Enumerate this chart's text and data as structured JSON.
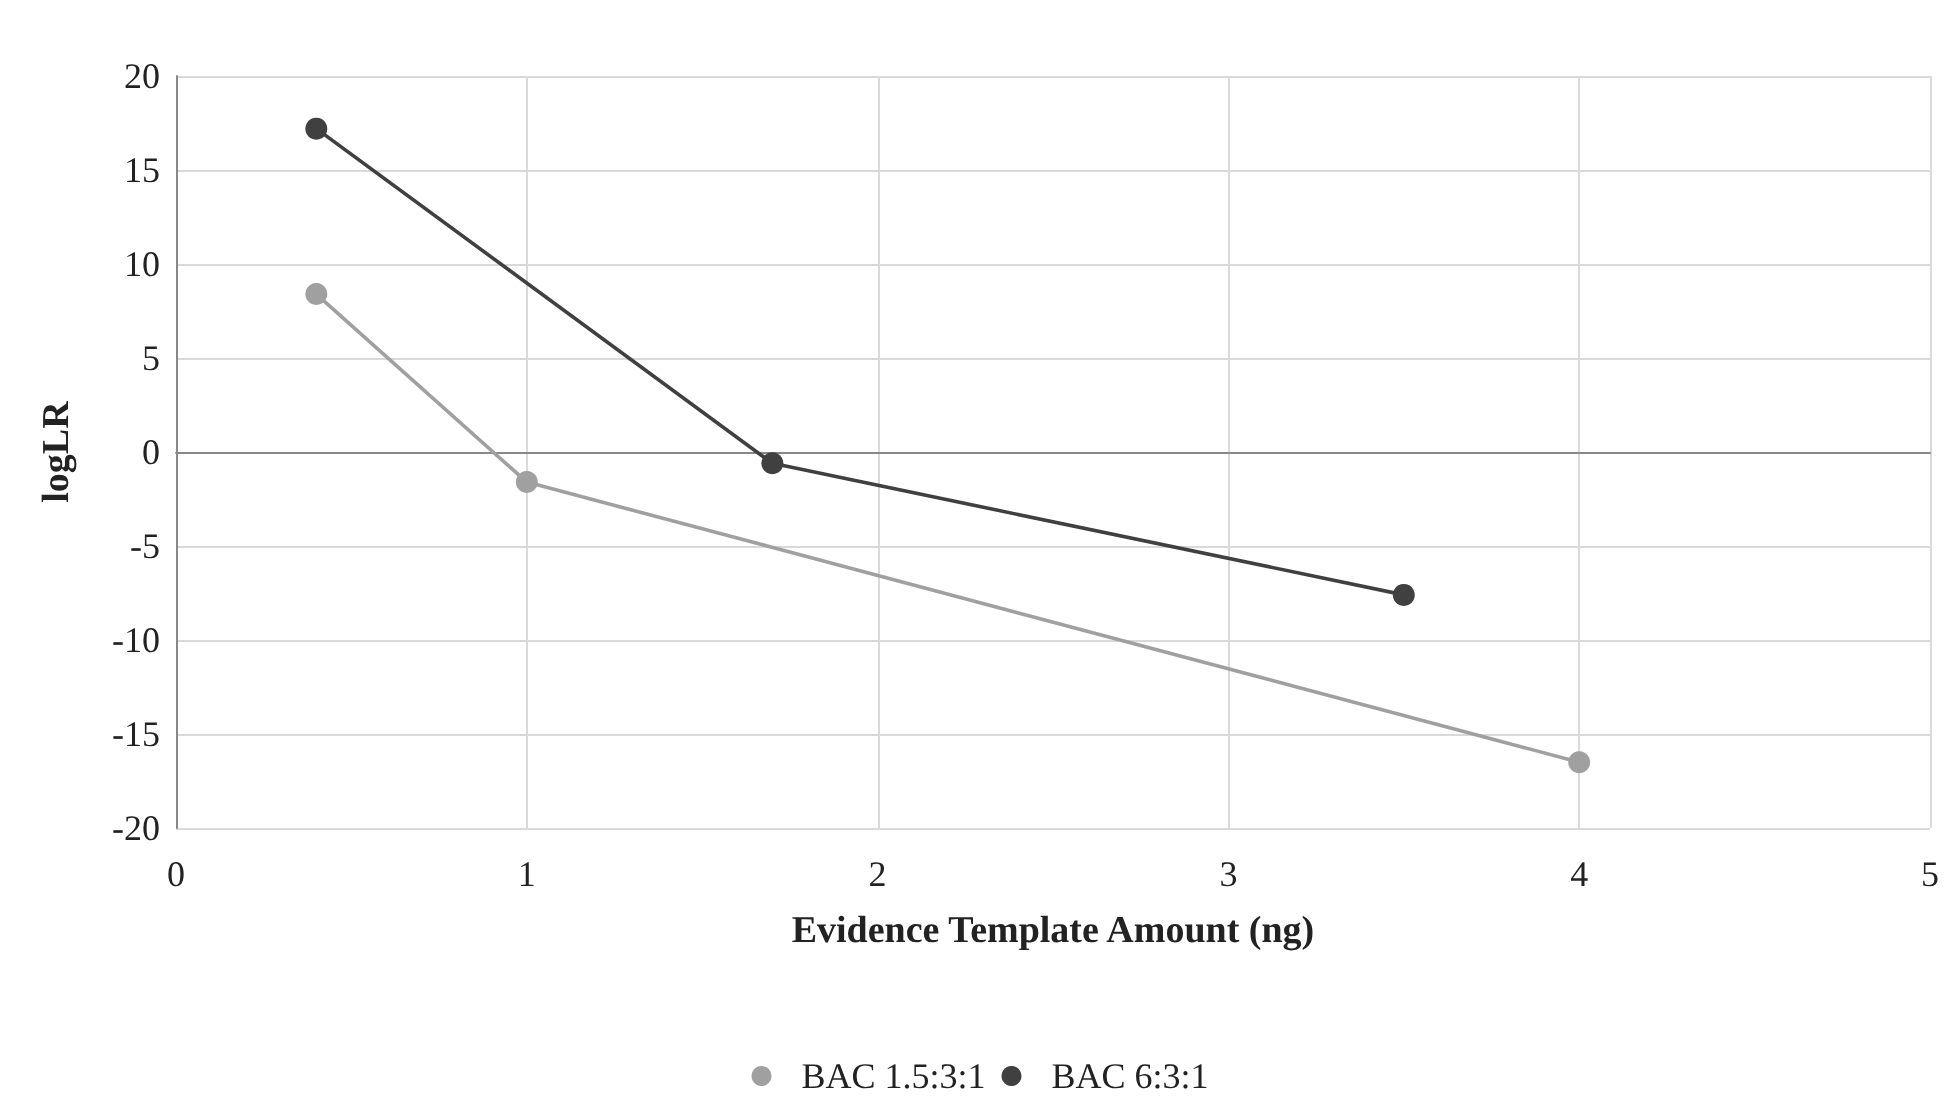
{
  "chart_data": {
    "type": "line",
    "xlabel": "Evidence Template Amount (ng)",
    "ylabel": "logLR",
    "series": [
      {
        "name": "BAC 1.5:3:1",
        "color": "#a0a0a0",
        "x": [
          0.4,
          1.0,
          4.0
        ],
        "values": [
          8.4,
          -1.6,
          -16.5
        ]
      },
      {
        "name": "BAC 6:3:1",
        "color": "#404040",
        "x": [
          0.4,
          1.7,
          3.5
        ],
        "values": [
          17.2,
          -0.6,
          -7.6
        ]
      }
    ],
    "xlim": [
      0,
      5
    ],
    "xticks": [
      0,
      1,
      2,
      3,
      4,
      5
    ],
    "ylim": [
      -20,
      20
    ],
    "yticks": [
      -20,
      -15,
      -10,
      -5,
      0,
      5,
      10,
      15,
      20
    ],
    "grid": true,
    "legend": "bottom",
    "marker": "circle",
    "line_style": "solid"
  }
}
